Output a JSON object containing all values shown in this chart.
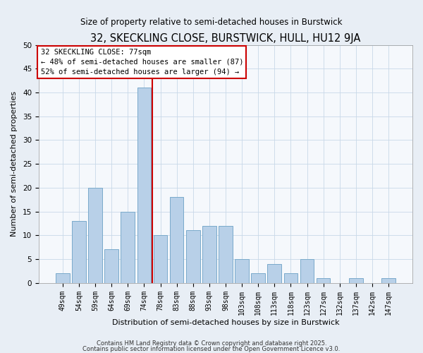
{
  "title": "32, SKECKLING CLOSE, BURSTWICK, HULL, HU12 9JA",
  "subtitle": "Size of property relative to semi-detached houses in Burstwick",
  "xlabel": "Distribution of semi-detached houses by size in Burstwick",
  "ylabel": "Number of semi-detached properties",
  "bar_labels": [
    "49sqm",
    "54sqm",
    "59sqm",
    "64sqm",
    "69sqm",
    "74sqm",
    "78sqm",
    "83sqm",
    "88sqm",
    "93sqm",
    "98sqm",
    "103sqm",
    "108sqm",
    "113sqm",
    "118sqm",
    "123sqm",
    "127sqm",
    "132sqm",
    "137sqm",
    "142sqm",
    "147sqm"
  ],
  "bar_values": [
    2,
    13,
    20,
    7,
    15,
    41,
    10,
    18,
    11,
    12,
    12,
    5,
    2,
    4,
    2,
    5,
    1,
    0,
    1,
    0,
    1
  ],
  "bar_color": "#b8d0e8",
  "bar_edge_color": "#7aaacb",
  "vline_color": "#cc0000",
  "vline_pos": 5.5,
  "ylim": [
    0,
    50
  ],
  "yticks": [
    0,
    5,
    10,
    15,
    20,
    25,
    30,
    35,
    40,
    45,
    50
  ],
  "annotation_line1": "32 SKECKLING CLOSE: 77sqm",
  "annotation_line2": "← 48% of semi-detached houses are smaller (87)",
  "annotation_line3": "52% of semi-detached houses are larger (94) →",
  "footer1": "Contains HM Land Registry data © Crown copyright and database right 2025.",
  "footer2": "Contains public sector information licensed under the Open Government Licence v3.0.",
  "bg_color": "#e8eef5",
  "plot_bg_color": "#f5f8fc",
  "grid_color": "#c8d8e8",
  "title_fontsize": 10.5,
  "subtitle_fontsize": 8.5,
  "tick_fontsize": 7,
  "label_fontsize": 8,
  "anno_fontsize": 7.5,
  "footer_fontsize": 6
}
